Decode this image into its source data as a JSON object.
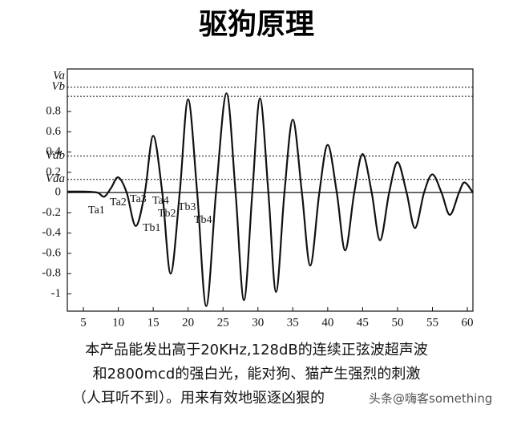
{
  "chart_data": {
    "type": "line",
    "title": "驱狗原理",
    "x": [
      2.7,
      5,
      7,
      8,
      9,
      10,
      11.2,
      12.5,
      13.8,
      15,
      16.3,
      17.5,
      18.8,
      20,
      21.3,
      22.6,
      24,
      25.5,
      26.8,
      28,
      29.2,
      30.3,
      31.5,
      32.6,
      33.8,
      35,
      36.3,
      37.5,
      38.8,
      40,
      41.3,
      42.5,
      43.8,
      45,
      46.3,
      47.5,
      48.8,
      50,
      51.3,
      52.5,
      53.8,
      55,
      56.3,
      57.5,
      58.8,
      59.6,
      60.8
    ],
    "series": [
      {
        "color": "#111111",
        "values": [
          0.01,
          0.01,
          0.0,
          -0.04,
          0.05,
          0.15,
          0.0,
          -0.33,
          0.0,
          0.56,
          0.0,
          -0.8,
          0.0,
          0.92,
          0.0,
          -1.12,
          0.0,
          0.98,
          0.0,
          -1.06,
          0.0,
          0.93,
          0.0,
          -0.98,
          0.0,
          0.72,
          0.0,
          -0.72,
          0.0,
          0.47,
          0.0,
          -0.57,
          0.0,
          0.38,
          0.0,
          -0.47,
          0.0,
          0.3,
          0.0,
          -0.35,
          0.0,
          0.18,
          0.0,
          -0.22,
          0.0,
          0.1,
          0.0
        ]
      }
    ],
    "xlim": [
      2.7,
      60.8
    ],
    "xticks": [
      5,
      10,
      15,
      20,
      25,
      30,
      35,
      40,
      45,
      50,
      55,
      60
    ],
    "ylim": [
      -1.17,
      1.22
    ],
    "yticks": [
      -1,
      -0.8,
      -0.6,
      -0.4,
      -0.2,
      0,
      0.2,
      0.4,
      0.6,
      0.8
    ],
    "reference_lines": [
      {
        "label": "Va",
        "value": 1.15,
        "line": false
      },
      {
        "label": "Vb",
        "value": 1.04,
        "line": true
      },
      {
        "value": 0.95,
        "line": true
      },
      {
        "label": "Vdb",
        "value": 0.36,
        "line": true
      },
      {
        "label": "Vda",
        "value": 0.13,
        "line": true
      }
    ],
    "annotations": [
      "Ta1",
      "Ta2",
      "Ta3",
      "Tb1",
      "Ta4",
      "Tb2",
      "Tb3",
      "Tb4"
    ],
    "caption": [
      "本产品能发出高于20KHz,128dB的连续正弦波超声波",
      "和2800mcd的强白光，能对狗、猫产生强烈的刺激",
      "（人耳听不到）。用来有效地驱逐凶狠的"
    ],
    "watermark": "头条@嗨客something"
  }
}
